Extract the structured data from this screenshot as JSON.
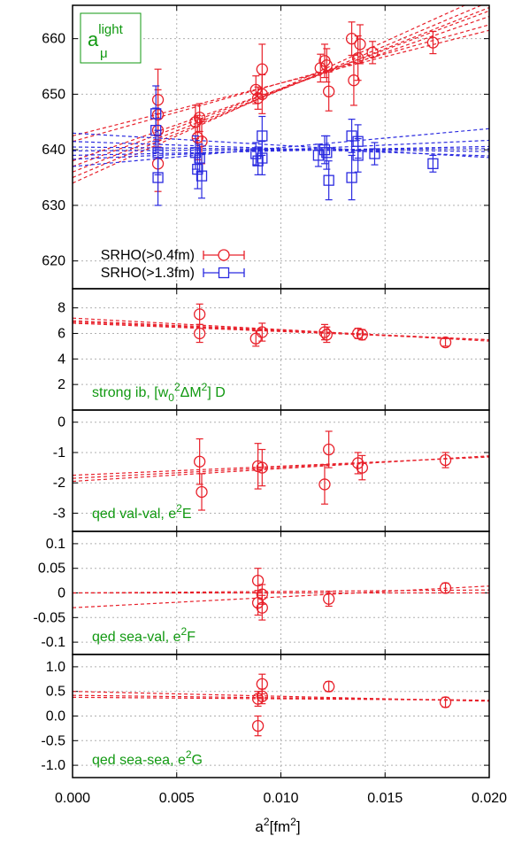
{
  "colors": {
    "red": "#e8202a",
    "blue": "#2a2ae0",
    "green": "#119911",
    "grid": "#b0b0b0"
  },
  "xaxis": {
    "label_base": "a",
    "label_sup": "2",
    "label_unit": "[fm",
    "label_unit_sup": "2",
    "label_close": "]",
    "lim": [
      0.0,
      0.02
    ],
    "ticks": [
      0.0,
      0.005,
      0.01,
      0.015,
      0.02
    ],
    "tick_labels": [
      "0.000",
      "0.005",
      "0.010",
      "0.015",
      "0.020"
    ]
  },
  "legend": {
    "entries": [
      {
        "label": "SRHO(>0.4fm)",
        "color_key": "red",
        "marker": "circle"
      },
      {
        "label": "SRHO(>1.3fm)",
        "color_key": "blue",
        "marker": "square"
      }
    ]
  },
  "chart_data": [
    {
      "type": "scatter",
      "title_main": "a",
      "title_sub": "μ",
      "title_sup": "light",
      "ylim": [
        615,
        666
      ],
      "yticks": [
        620,
        630,
        640,
        650,
        660
      ],
      "series": [
        {
          "name": "SRHO(>0.4fm)",
          "color_key": "red",
          "marker": "circle",
          "points": [
            {
              "x": 0.0041,
              "y": 649.0,
              "err": 5.5
            },
            {
              "x": 0.0041,
              "y": 646.3,
              "err": 4.5
            },
            {
              "x": 0.0041,
              "y": 643.5,
              "err": 3.0
            },
            {
              "x": 0.0041,
              "y": 637.5,
              "err": 5.0
            },
            {
              "x": 0.0059,
              "y": 645.0,
              "err": 3.0
            },
            {
              "x": 0.006,
              "y": 642.2,
              "err": 4.0
            },
            {
              "x": 0.0061,
              "y": 645.8,
              "err": 2.5
            },
            {
              "x": 0.0062,
              "y": 641.5,
              "err": 4.0
            },
            {
              "x": 0.0088,
              "y": 650.8,
              "err": 2.5
            },
            {
              "x": 0.0089,
              "y": 649.3,
              "err": 2.0
            },
            {
              "x": 0.0091,
              "y": 654.5,
              "err": 4.5
            },
            {
              "x": 0.0091,
              "y": 650.0,
              "err": 3.5
            },
            {
              "x": 0.0119,
              "y": 654.7,
              "err": 2.5
            },
            {
              "x": 0.0121,
              "y": 656.0,
              "err": 3.0
            },
            {
              "x": 0.0122,
              "y": 655.2,
              "err": 3.0
            },
            {
              "x": 0.0123,
              "y": 650.5,
              "err": 3.5
            },
            {
              "x": 0.0134,
              "y": 660.0,
              "err": 3.0
            },
            {
              "x": 0.0135,
              "y": 652.5,
              "err": 4.5
            },
            {
              "x": 0.0137,
              "y": 656.5,
              "err": 4.0
            },
            {
              "x": 0.0138,
              "y": 659.0,
              "err": 3.5
            },
            {
              "x": 0.0144,
              "y": 657.5,
              "err": 2.0
            },
            {
              "x": 0.0173,
              "y": 659.3,
              "err": 2.0
            }
          ],
          "fits": [
            {
              "intercept": 634.0,
              "slope": 1700
            },
            {
              "intercept": 635.0,
              "slope": 1580
            },
            {
              "intercept": 636.0,
              "slope": 1480
            },
            {
              "intercept": 637.0,
              "slope": 1400
            },
            {
              "intercept": 638.0,
              "slope": 1300
            },
            {
              "intercept": 641.5,
              "slope": 1050
            },
            {
              "intercept": 642.5,
              "slope": 950
            }
          ]
        },
        {
          "name": "SRHO(>1.3fm)",
          "color_key": "blue",
          "marker": "square",
          "points": [
            {
              "x": 0.004,
              "y": 646.5,
              "err": 5.0
            },
            {
              "x": 0.004,
              "y": 643.5,
              "err": 4.0
            },
            {
              "x": 0.0041,
              "y": 639.5,
              "err": 4.0
            },
            {
              "x": 0.0041,
              "y": 635.0,
              "err": 5.0
            },
            {
              "x": 0.0059,
              "y": 639.5,
              "err": 3.0
            },
            {
              "x": 0.006,
              "y": 636.5,
              "err": 3.5
            },
            {
              "x": 0.0061,
              "y": 638.5,
              "err": 2.5
            },
            {
              "x": 0.0062,
              "y": 635.3,
              "err": 4.0
            },
            {
              "x": 0.0088,
              "y": 639.3,
              "err": 2.0
            },
            {
              "x": 0.0089,
              "y": 638.0,
              "err": 2.5
            },
            {
              "x": 0.0091,
              "y": 642.5,
              "err": 3.5
            },
            {
              "x": 0.0091,
              "y": 638.5,
              "err": 3.0
            },
            {
              "x": 0.0118,
              "y": 639.0,
              "err": 2.0
            },
            {
              "x": 0.0121,
              "y": 640.0,
              "err": 2.5
            },
            {
              "x": 0.0122,
              "y": 639.5,
              "err": 3.0
            },
            {
              "x": 0.0123,
              "y": 634.5,
              "err": 3.5
            },
            {
              "x": 0.0134,
              "y": 642.5,
              "err": 3.0
            },
            {
              "x": 0.0134,
              "y": 635.0,
              "err": 4.0
            },
            {
              "x": 0.0137,
              "y": 639.0,
              "err": 3.0
            },
            {
              "x": 0.0137,
              "y": 641.5,
              "err": 3.0
            },
            {
              "x": 0.0145,
              "y": 639.3,
              "err": 2.0
            },
            {
              "x": 0.0173,
              "y": 637.5,
              "err": 1.5
            }
          ],
          "fits": [
            {
              "intercept": 643.0,
              "slope": -220
            },
            {
              "intercept": 641.5,
              "slope": -130
            },
            {
              "intercept": 640.5,
              "slope": -40
            },
            {
              "intercept": 639.8,
              "slope": 20
            },
            {
              "intercept": 639.0,
              "slope": 80
            },
            {
              "intercept": 638.3,
              "slope": 170
            },
            {
              "intercept": 637.0,
              "slope": 340
            }
          ]
        }
      ]
    },
    {
      "type": "scatter",
      "label_text": "strong ib, [w",
      "label_sub": "0",
      "label_sup1": "2",
      "label_mid": "ΔM",
      "label_sup2": "2",
      "label_end": "] D",
      "ylim": [
        0,
        9.5
      ],
      "yticks": [
        2,
        4,
        6,
        8
      ],
      "series": [
        {
          "color_key": "red",
          "marker": "circle",
          "points": [
            {
              "x": 0.0061,
              "y": 7.5,
              "err": 0.8
            },
            {
              "x": 0.0061,
              "y": 6.0,
              "err": 0.7
            },
            {
              "x": 0.0088,
              "y": 5.6,
              "err": 0.6
            },
            {
              "x": 0.0091,
              "y": 6.1,
              "err": 0.7
            },
            {
              "x": 0.0121,
              "y": 6.1,
              "err": 0.6
            },
            {
              "x": 0.0122,
              "y": 5.9,
              "err": 0.6
            },
            {
              "x": 0.0137,
              "y": 6.0,
              "err": 0.4
            },
            {
              "x": 0.0139,
              "y": 5.9,
              "err": 0.4
            },
            {
              "x": 0.0179,
              "y": 5.3,
              "err": 0.3
            }
          ],
          "fits": [
            {
              "intercept": 7.2,
              "slope": -90
            },
            {
              "intercept": 7.0,
              "slope": -75
            },
            {
              "intercept": 6.9,
              "slope": -70
            },
            {
              "intercept": 6.8,
              "slope": -65
            }
          ]
        }
      ]
    },
    {
      "type": "scatter",
      "label_text": "qed val-val, e",
      "label_sup": "2",
      "label_end": "E",
      "ylim": [
        -3.6,
        0.4
      ],
      "yticks": [
        -3,
        -2,
        -1,
        0
      ],
      "series": [
        {
          "color_key": "red",
          "marker": "circle",
          "points": [
            {
              "x": 0.0061,
              "y": -1.3,
              "err": 0.75
            },
            {
              "x": 0.0062,
              "y": -2.3,
              "err": 0.6
            },
            {
              "x": 0.0089,
              "y": -1.45,
              "err": 0.75
            },
            {
              "x": 0.0091,
              "y": -1.5,
              "err": 0.6
            },
            {
              "x": 0.0121,
              "y": -2.05,
              "err": 0.65
            },
            {
              "x": 0.0123,
              "y": -0.9,
              "err": 0.6
            },
            {
              "x": 0.0137,
              "y": -1.35,
              "err": 0.35
            },
            {
              "x": 0.0139,
              "y": -1.5,
              "err": 0.4
            },
            {
              "x": 0.0179,
              "y": -1.25,
              "err": 0.25
            }
          ],
          "fits": [
            {
              "intercept": -1.95,
              "slope": 42
            },
            {
              "intercept": -1.85,
              "slope": 36
            },
            {
              "intercept": -1.75,
              "slope": 30
            }
          ]
        }
      ]
    },
    {
      "type": "scatter",
      "label_text": "qed sea-val, e",
      "label_sup": "2",
      "label_end": "F",
      "ylim": [
        -0.125,
        0.125
      ],
      "yticks": [
        -0.1,
        -0.05,
        0.0,
        0.05,
        0.1
      ],
      "series": [
        {
          "color_key": "red",
          "marker": "circle",
          "points": [
            {
              "x": 0.0089,
              "y": 0.025,
              "err": 0.025
            },
            {
              "x": 0.0089,
              "y": -0.02,
              "err": 0.025
            },
            {
              "x": 0.0091,
              "y": -0.003,
              "err": 0.02
            },
            {
              "x": 0.0091,
              "y": -0.03,
              "err": 0.025
            },
            {
              "x": 0.0123,
              "y": -0.012,
              "err": 0.015
            },
            {
              "x": 0.0179,
              "y": 0.01,
              "err": 0.01
            }
          ],
          "fits": [
            {
              "intercept": -0.03,
              "slope": 2.2
            },
            {
              "intercept": 0.0,
              "slope": 0.3
            },
            {
              "intercept": 0.0,
              "slope": 0.0
            }
          ]
        }
      ]
    },
    {
      "type": "scatter",
      "label_text": "qed sea-sea, e",
      "label_sup": "2",
      "label_end": "G",
      "ylim": [
        -1.25,
        1.25
      ],
      "yticks": [
        -1.0,
        -0.5,
        0.0,
        0.5,
        1.0
      ],
      "ytick_labels": [
        "-1.0",
        "-0.5",
        "0.0",
        "0.5",
        "1.0"
      ],
      "series": [
        {
          "color_key": "red",
          "marker": "circle",
          "points": [
            {
              "x": 0.0089,
              "y": 0.35,
              "err": 0.15
            },
            {
              "x": 0.0089,
              "y": -0.2,
              "err": 0.2
            },
            {
              "x": 0.0091,
              "y": 0.65,
              "err": 0.2
            },
            {
              "x": 0.0091,
              "y": 0.4,
              "err": 0.15
            },
            {
              "x": 0.0123,
              "y": 0.6,
              "err": 0.1
            },
            {
              "x": 0.0179,
              "y": 0.28,
              "err": 0.1
            }
          ],
          "fits": [
            {
              "intercept": 0.5,
              "slope": -10
            },
            {
              "intercept": 0.42,
              "slope": -5
            },
            {
              "intercept": 0.38,
              "slope": -3
            }
          ]
        }
      ]
    }
  ]
}
